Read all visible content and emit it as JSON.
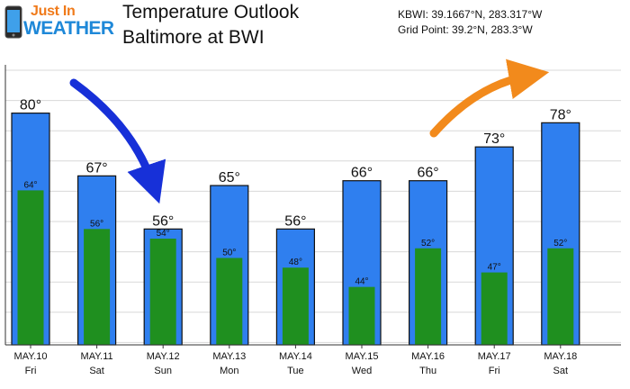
{
  "header": {
    "logo_line1": "Just In",
    "logo_line2": "WEATHER",
    "title_line1": "Temperature Outlook",
    "title_line2": "Baltimore at BWI",
    "station_coords": "KBWI: 39.1667°N, 283.317°W",
    "grid_point": "Grid Point: 39.2°N, 283.3°W"
  },
  "colors": {
    "high_bar": "#2f7fef",
    "low_bar": "#1f8f1f",
    "trend_down_arrow": "#1730d8",
    "trend_up_arrow": "#f28a1c",
    "logo_orange": "#f07a1a",
    "logo_blue": "#1e88d8"
  },
  "icons": [
    "phone-icon",
    "trend-down-arrow",
    "trend-up-arrow"
  ],
  "chart_data": {
    "type": "bar",
    "categories": [
      "MAY.10",
      "MAY.11",
      "MAY.12",
      "MAY.13",
      "MAY.14",
      "MAY.15",
      "MAY.16",
      "MAY.17",
      "MAY.18"
    ],
    "days": [
      "Fri",
      "Sat",
      "Sun",
      "Mon",
      "Tue",
      "Wed",
      "Thu",
      "Fri",
      "Sat"
    ],
    "series": [
      {
        "values": [
          80,
          67,
          56,
          65,
          56,
          66,
          66,
          73,
          78
        ]
      },
      {
        "values": [
          64,
          56,
          54,
          50,
          48,
          44,
          52,
          47,
          52
        ]
      }
    ],
    "high_labels": [
      "80°",
      "67°",
      "56°",
      "65°",
      "56°",
      "66°",
      "66°",
      "73°",
      "78°"
    ],
    "low_labels": [
      "64°",
      "56°",
      "54°",
      "50°",
      "48°",
      "44°",
      "52°",
      "47°",
      "52°"
    ],
    "title": "Temperature Outlook",
    "xlabel": "",
    "ylabel": "",
    "ylim": [
      32,
      90
    ],
    "grid": true,
    "legend": "none"
  }
}
